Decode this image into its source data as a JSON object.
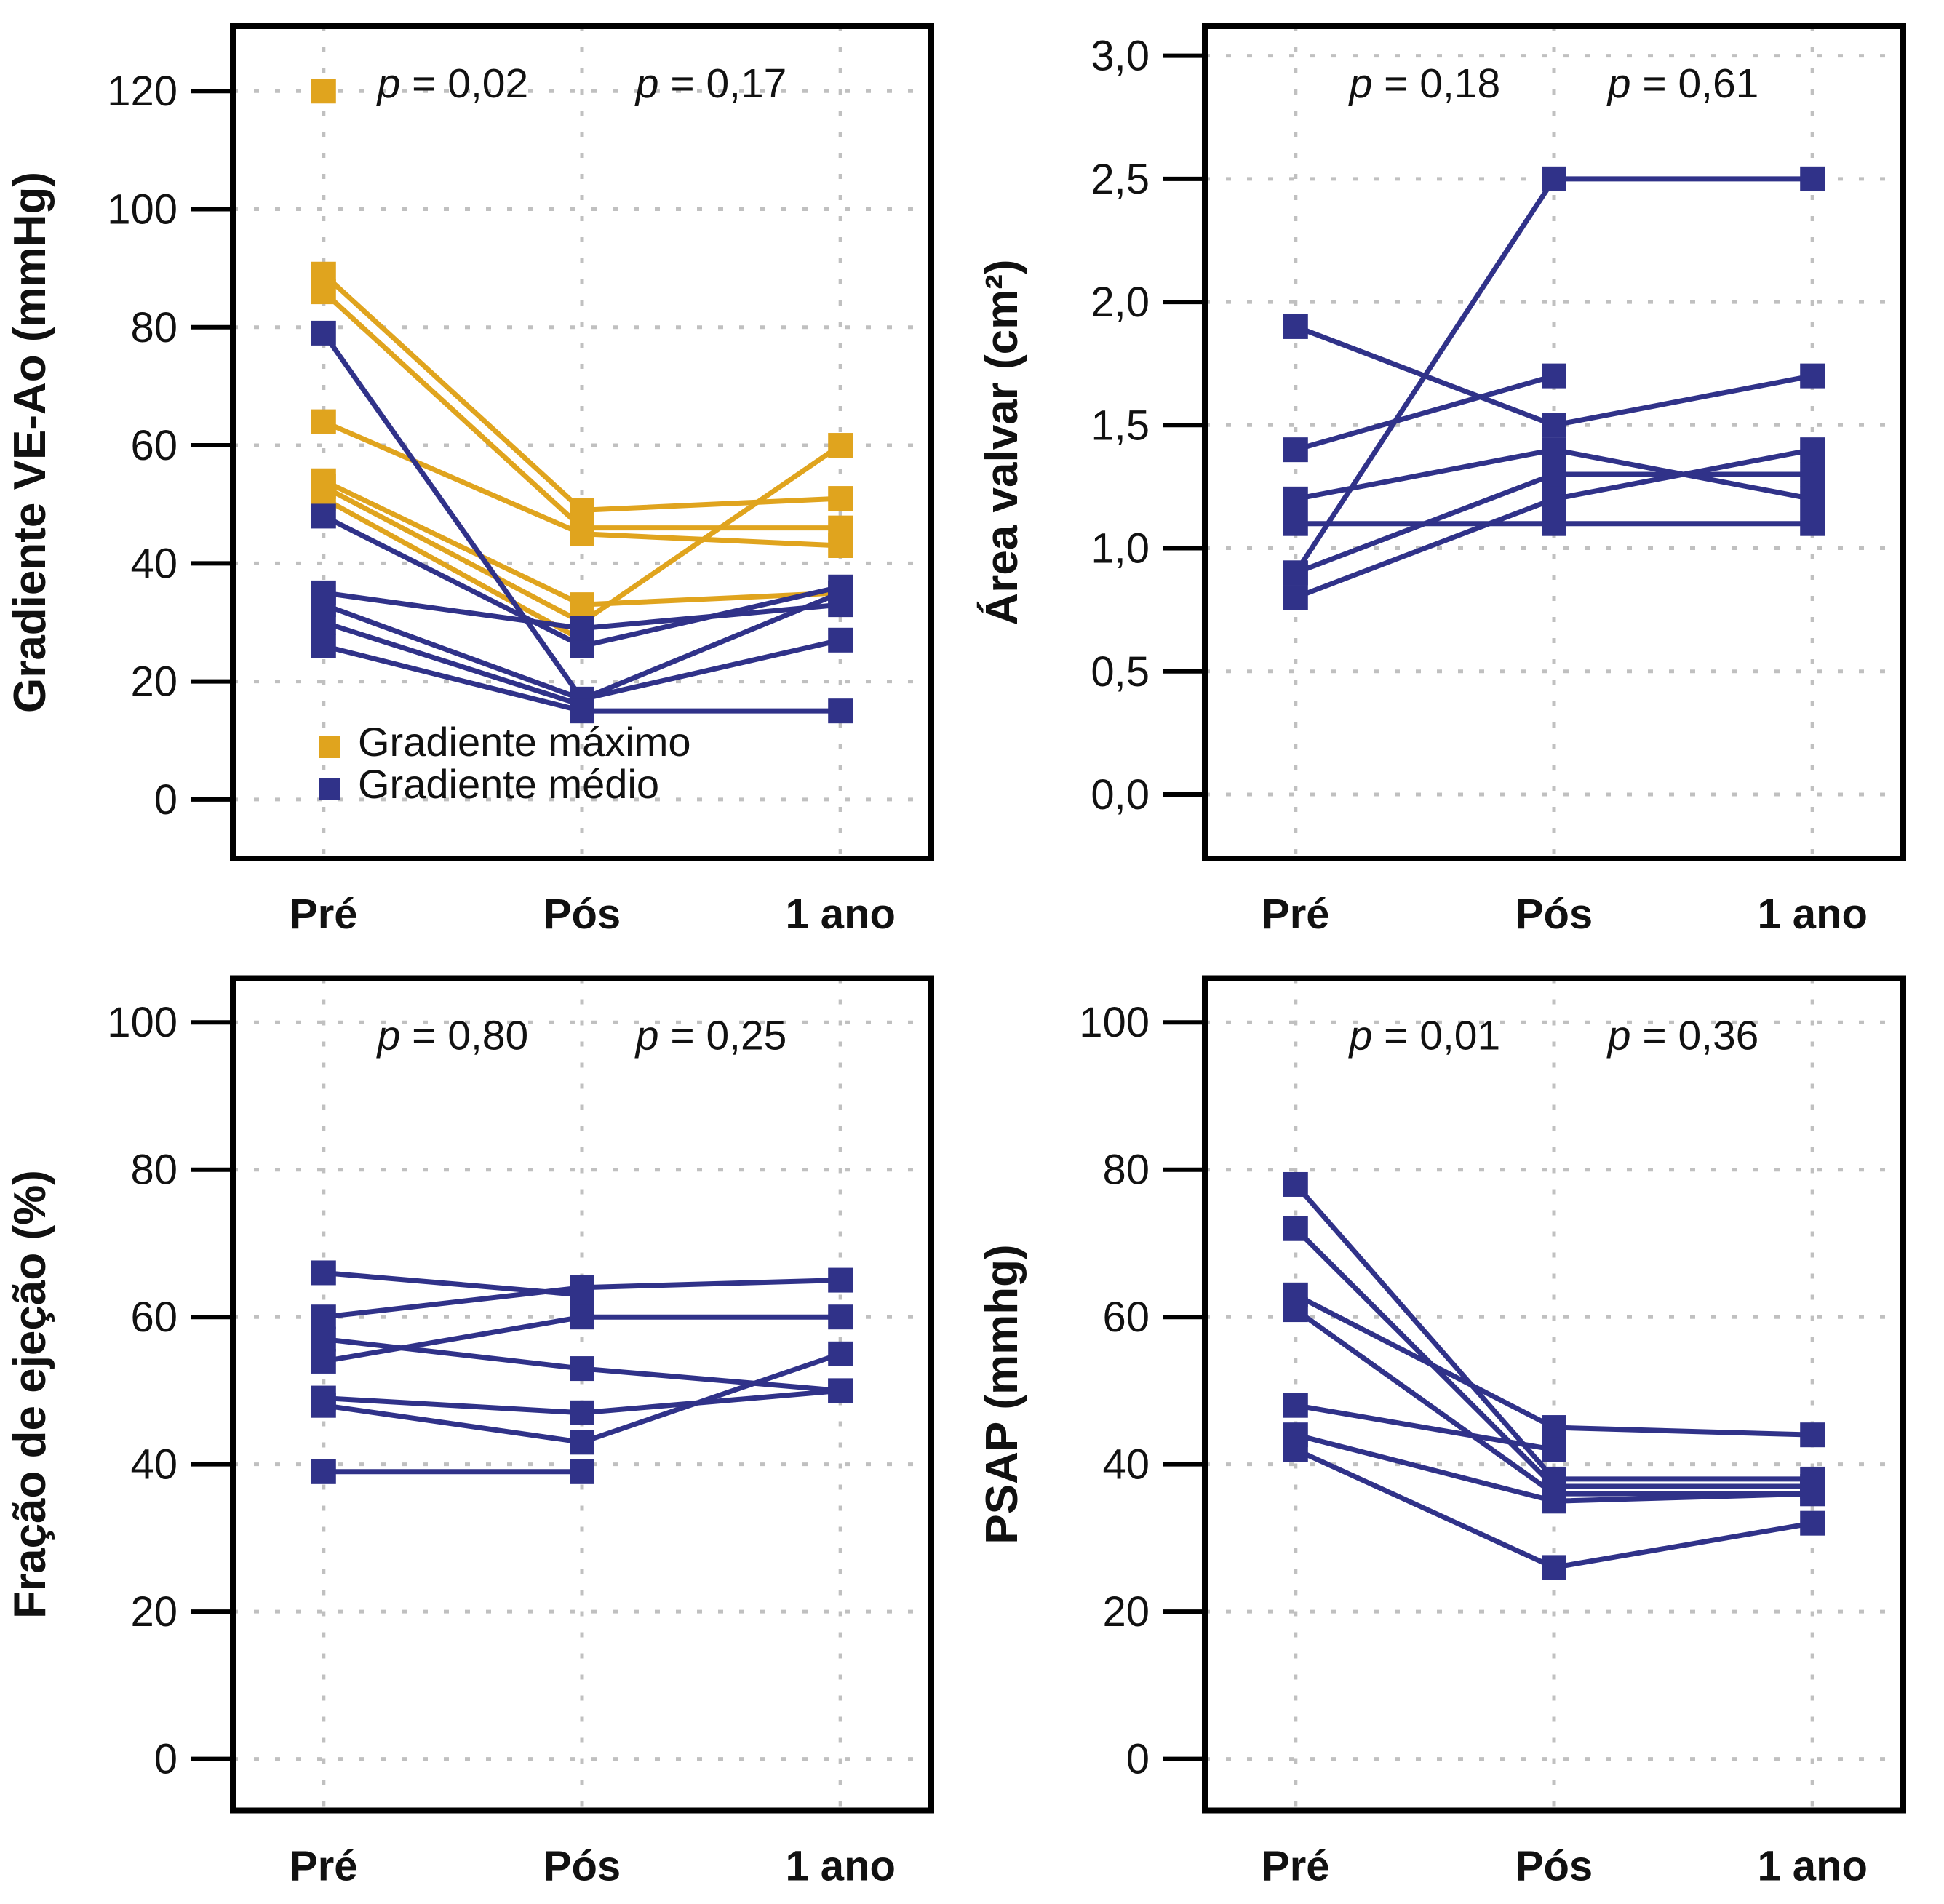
{
  "figure": {
    "background_color": "#ffffff",
    "axis_color": "#000000",
    "gridline_color": "#c0c0c0",
    "text_color": "#111111"
  },
  "chart_data": [
    {
      "id": "gradiente-ve-ao",
      "type": "line",
      "ylabel": "Gradiente VE-Ao (mmHg)",
      "categories": [
        "Pré",
        "Pós",
        "1 ano"
      ],
      "yticks": [
        0,
        20,
        40,
        60,
        80,
        100,
        120
      ],
      "ytick_labels": [
        "0",
        "20",
        "40",
        "60",
        "80",
        "100",
        "120"
      ],
      "ylim": [
        -10,
        131
      ],
      "grid": true,
      "annotations": [
        {
          "label": "p = 0,02",
          "between": [
            0,
            1
          ]
        },
        {
          "label": "p = 0,17",
          "between": [
            1,
            2
          ]
        }
      ],
      "legend": [
        {
          "name": "Gradiente máximo",
          "color": "#E0A41E"
        },
        {
          "name": "Gradiente médio",
          "color": "#303289"
        }
      ],
      "series": [
        {
          "group": "Gradiente máximo",
          "color": "#E0A41E",
          "values": [
            120,
            null,
            null
          ]
        },
        {
          "group": "Gradiente máximo",
          "color": "#E0A41E",
          "values": [
            89,
            49,
            51
          ]
        },
        {
          "group": "Gradiente máximo",
          "color": "#E0A41E",
          "values": [
            86,
            46,
            46
          ]
        },
        {
          "group": "Gradiente máximo",
          "color": "#E0A41E",
          "values": [
            64,
            45,
            43
          ]
        },
        {
          "group": "Gradiente máximo",
          "color": "#E0A41E",
          "values": [
            54,
            33,
            35
          ]
        },
        {
          "group": "Gradiente máximo",
          "color": "#E0A41E",
          "values": [
            53,
            30,
            60
          ]
        },
        {
          "group": "Gradiente máximo",
          "color": "#E0A41E",
          "values": [
            51,
            27,
            null
          ]
        },
        {
          "group": "Gradiente médio",
          "color": "#303289",
          "values": [
            79,
            17,
            35
          ]
        },
        {
          "group": "Gradiente médio",
          "color": "#303289",
          "values": [
            48,
            26,
            36
          ]
        },
        {
          "group": "Gradiente médio",
          "color": "#303289",
          "values": [
            35,
            29,
            33
          ]
        },
        {
          "group": "Gradiente médio",
          "color": "#303289",
          "values": [
            33,
            17,
            27
          ]
        },
        {
          "group": "Gradiente médio",
          "color": "#303289",
          "values": [
            30,
            16,
            null
          ]
        },
        {
          "group": "Gradiente médio",
          "color": "#303289",
          "values": [
            26,
            15,
            15
          ]
        }
      ]
    },
    {
      "id": "area-valvar",
      "type": "line",
      "ylabel": "Área valvar (cm²)",
      "categories": [
        "Pré",
        "Pós",
        "1 ano"
      ],
      "yticks": [
        0.0,
        0.5,
        1.0,
        1.5,
        2.0,
        2.5,
        3.0
      ],
      "ytick_labels": [
        "0,0",
        "0,5",
        "1,0",
        "1,5",
        "2,0",
        "2,5",
        "3,0"
      ],
      "ylim": [
        -0.26,
        3.12
      ],
      "grid": true,
      "annotations": [
        {
          "label": "p = 0,18",
          "between": [
            0,
            1
          ]
        },
        {
          "label": "p = 0,61",
          "between": [
            1,
            2
          ]
        }
      ],
      "legend": [],
      "series": [
        {
          "group": "Área valvar",
          "color": "#303289",
          "values": [
            1.9,
            1.5,
            1.7
          ]
        },
        {
          "group": "Área valvar",
          "color": "#303289",
          "values": [
            1.4,
            1.7,
            null
          ]
        },
        {
          "group": "Área valvar",
          "color": "#303289",
          "values": [
            1.2,
            1.4,
            1.2
          ]
        },
        {
          "group": "Área valvar",
          "color": "#303289",
          "values": [
            1.1,
            1.1,
            1.1
          ]
        },
        {
          "group": "Área valvar",
          "color": "#303289",
          "values": [
            0.9,
            2.5,
            2.5
          ]
        },
        {
          "group": "Área valvar",
          "color": "#303289",
          "values": [
            0.9,
            1.3,
            1.3
          ]
        },
        {
          "group": "Área valvar",
          "color": "#303289",
          "values": [
            0.8,
            1.2,
            1.4
          ]
        }
      ]
    },
    {
      "id": "fracao-ejecao",
      "type": "line",
      "ylabel": "Fração de ejeção (%)",
      "categories": [
        "Pré",
        "Pós",
        "1 ano"
      ],
      "yticks": [
        0,
        20,
        40,
        60,
        80,
        100
      ],
      "ytick_labels": [
        "0",
        "20",
        "40",
        "60",
        "80",
        "100"
      ],
      "ylim": [
        -7,
        106
      ],
      "grid": true,
      "annotations": [
        {
          "label": "p = 0,80",
          "between": [
            0,
            1
          ]
        },
        {
          "label": "p = 0,25",
          "between": [
            1,
            2
          ]
        }
      ],
      "legend": [],
      "series": [
        {
          "group": "Fração de ejeção",
          "color": "#303289",
          "values": [
            66,
            63,
            null
          ]
        },
        {
          "group": "Fração de ejeção",
          "color": "#303289",
          "values": [
            60,
            64,
            65
          ]
        },
        {
          "group": "Fração de ejeção",
          "color": "#303289",
          "values": [
            57,
            53,
            50
          ]
        },
        {
          "group": "Fração de ejeção",
          "color": "#303289",
          "values": [
            54,
            60,
            60
          ]
        },
        {
          "group": "Fração de ejeção",
          "color": "#303289",
          "values": [
            49,
            47,
            50
          ]
        },
        {
          "group": "Fração de ejeção",
          "color": "#303289",
          "values": [
            48,
            43,
            55
          ]
        },
        {
          "group": "Fração de ejeção",
          "color": "#303289",
          "values": [
            39,
            39,
            null
          ]
        }
      ]
    },
    {
      "id": "psap",
      "type": "line",
      "ylabel": "PSAP (mmhg)",
      "categories": [
        "Pré",
        "Pós",
        "1 ano"
      ],
      "yticks": [
        0,
        20,
        40,
        60,
        80,
        100
      ],
      "ytick_labels": [
        "0",
        "20",
        "40",
        "60",
        "80",
        "100"
      ],
      "ylim": [
        -7,
        106
      ],
      "grid": true,
      "annotations": [
        {
          "label": "p = 0,01",
          "between": [
            0,
            1
          ]
        },
        {
          "label": "p = 0,36",
          "between": [
            1,
            2
          ]
        }
      ],
      "legend": [],
      "series": [
        {
          "group": "PSAP",
          "color": "#303289",
          "values": [
            78,
            38,
            38
          ]
        },
        {
          "group": "PSAP",
          "color": "#303289",
          "values": [
            72,
            37,
            37
          ]
        },
        {
          "group": "PSAP",
          "color": "#303289",
          "values": [
            63,
            45,
            44
          ]
        },
        {
          "group": "PSAP",
          "color": "#303289",
          "values": [
            61,
            36,
            36
          ]
        },
        {
          "group": "PSAP",
          "color": "#303289",
          "values": [
            48,
            42,
            null
          ]
        },
        {
          "group": "PSAP",
          "color": "#303289",
          "values": [
            44,
            35,
            36
          ]
        },
        {
          "group": "PSAP",
          "color": "#303289",
          "values": [
            42,
            26,
            32
          ]
        }
      ]
    }
  ]
}
